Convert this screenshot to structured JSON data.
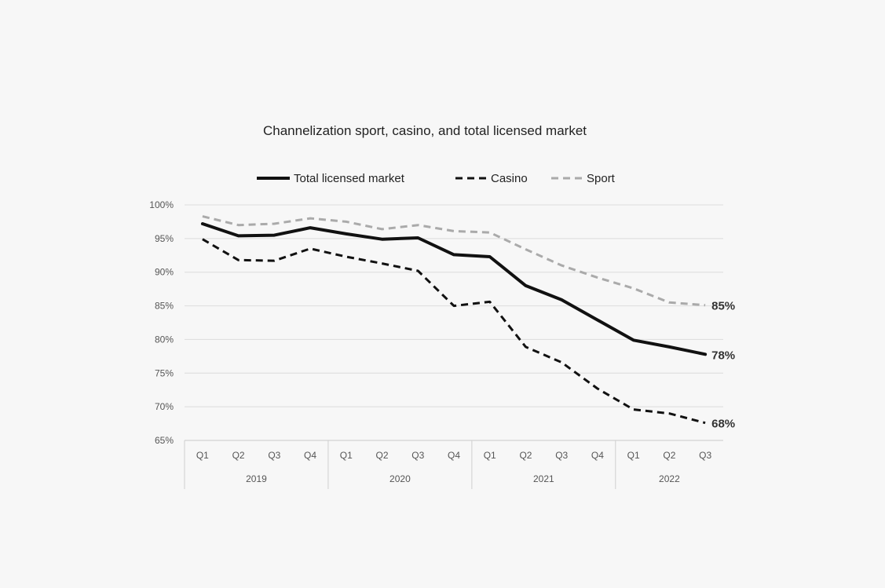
{
  "chart_data": {
    "type": "line",
    "title": "Channelization sport, casino, and total licensed market",
    "xlabel": "",
    "ylabel": "",
    "ylim": [
      65,
      100
    ],
    "ytick_labels": [
      "100%",
      "95%",
      "90%",
      "85%",
      "80%",
      "75%",
      "70%",
      "65%"
    ],
    "grid": true,
    "legend_position": "top",
    "categories": [
      "Q1",
      "Q2",
      "Q3",
      "Q4",
      "Q1",
      "Q2",
      "Q3",
      "Q4",
      "Q1",
      "Q2",
      "Q3",
      "Q4",
      "Q1",
      "Q2",
      "Q3"
    ],
    "year_groups": [
      {
        "label": "2019",
        "count": 4
      },
      {
        "label": "2020",
        "count": 4
      },
      {
        "label": "2021",
        "count": 4
      },
      {
        "label": "2022",
        "count": 3
      }
    ],
    "series": [
      {
        "name": "Total licensed market",
        "style": "solid",
        "color": "#111111",
        "values": [
          97.2,
          95.4,
          95.5,
          96.6,
          95.7,
          94.9,
          95.1,
          92.6,
          92.3,
          88.0,
          85.9,
          82.9,
          79.9,
          78.9,
          77.8
        ],
        "end_label": "78%"
      },
      {
        "name": "Casino",
        "style": "dashed",
        "color": "#111111",
        "values": [
          94.9,
          91.8,
          91.7,
          93.5,
          92.3,
          91.3,
          90.2,
          85.0,
          85.6,
          78.9,
          76.6,
          72.7,
          69.6,
          69.0,
          67.6
        ],
        "end_label": "68%"
      },
      {
        "name": "Sport",
        "style": "dashed",
        "color": "#aaaaaa",
        "values": [
          98.3,
          97.0,
          97.2,
          98.0,
          97.5,
          96.4,
          97.0,
          96.1,
          95.9,
          93.4,
          91.0,
          89.2,
          87.6,
          85.5,
          85.1
        ],
        "end_label": "85%"
      }
    ]
  }
}
